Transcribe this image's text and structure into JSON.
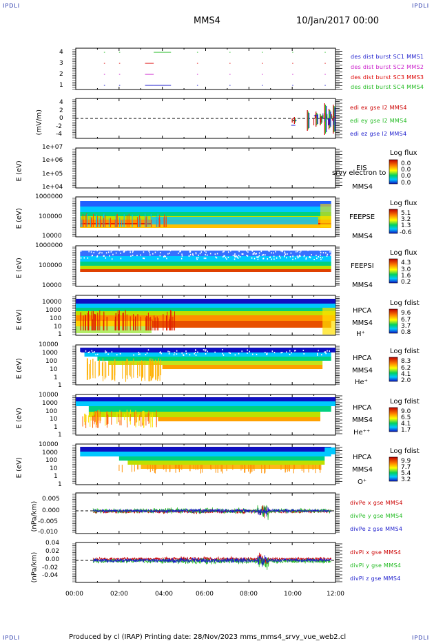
{
  "header": {
    "corners": [
      "IPDLI",
      "IPDLI",
      "IPDLI",
      "IPDLI"
    ],
    "spacecraft": "MMS4",
    "date": "10/Jan/2017 00:00"
  },
  "footer": {
    "text": "Produced by cl (IRAP)   Printing date: 28/Nov/2023   mms_mms4_srvy_vue_web2.cl"
  },
  "colors": {
    "mms1": "#1a1acc",
    "mms2": "#cc22cc",
    "mms3": "#dd0000",
    "mms4": "#22bb22",
    "ex": "#cc0000",
    "ey": "#22bb22",
    "ez": "#1a1acc"
  },
  "chart_data": [
    {
      "type": "scatter",
      "id": "burst",
      "yticks": [
        "4",
        "3",
        "2",
        "1"
      ],
      "legend": [
        "des dist burst SC1 MMS1",
        "des dist burst SC2 MMS2",
        "des dist burst SC3 MMS3",
        "des dist burst SC4 MMS4"
      ],
      "xlim": [
        "00:00",
        "12:00"
      ],
      "segments_hours": [
        [
          1.3,
          1.35
        ],
        [
          2.0,
          2.05
        ],
        [
          3.2,
          3.6
        ],
        [
          3.6,
          4.4
        ],
        [
          5.6,
          5.63
        ],
        [
          7.1,
          7.13
        ],
        [
          8.6,
          8.63
        ],
        [
          10.0,
          10.03
        ],
        [
          11.5,
          11.53
        ]
      ]
    },
    {
      "type": "line",
      "id": "edi",
      "ylabel": "(mV/m)",
      "yticks": [
        "4",
        "2",
        "0",
        "-2",
        "-4"
      ],
      "ylim": [
        -5,
        5
      ],
      "legend": [
        "edi ex gse l2 MMS4",
        "edi ey gse l2 MMS4",
        "edi ez gse l2 MMS4"
      ]
    },
    {
      "type": "heatmap",
      "id": "eis",
      "ylabel": "E (eV)",
      "yticks": [
        "1e+07",
        "1e+06",
        "1e+05",
        "1e+04"
      ],
      "instrument": [
        "EIS",
        "MMS4"
      ],
      "overlay_text": "srvy electron to",
      "colorbar_title": "Log flux",
      "colorbar_values": [
        "0.0",
        "0.0",
        "0.0",
        "0.0"
      ]
    },
    {
      "type": "heatmap",
      "id": "feepse",
      "ylabel": "E (eV)",
      "yticks": [
        "1000000",
        "100000",
        "10000"
      ],
      "instrument": [
        "FEEPSE",
        "MMS4"
      ],
      "colorbar_title": "Log flux",
      "colorbar_values": [
        "5.1",
        "3.2",
        "1.3",
        "-0.6"
      ]
    },
    {
      "type": "heatmap",
      "id": "feepsi",
      "ylabel": "E (eV)",
      "yticks": [
        "1000000",
        "100000",
        "10000"
      ],
      "instrument": [
        "FEEPSI",
        "MMS4"
      ],
      "colorbar_title": "Log flux",
      "colorbar_values": [
        "4.3",
        "3.0",
        "1.6",
        "0.2"
      ]
    },
    {
      "type": "heatmap",
      "id": "hpca-h",
      "ylabel": "E (eV)",
      "yticks": [
        "10000",
        "1000",
        "100",
        "10",
        "1"
      ],
      "instrument": [
        "HPCA",
        "MMS4",
        "H⁺"
      ],
      "colorbar_title": "Log fdist",
      "colorbar_values": [
        "9.6",
        "6.7",
        "3.7",
        "0.8"
      ]
    },
    {
      "type": "heatmap",
      "id": "hpca-he",
      "ylabel": "E (eV)",
      "yticks": [
        "10000",
        "1000",
        "100",
        "10",
        "1"
      ],
      "instrument": [
        "HPCA",
        "MMS4",
        "He⁺"
      ],
      "colorbar_title": "Log fdist",
      "colorbar_values": [
        "8.3",
        "6.2",
        "4.1",
        "2.0"
      ]
    },
    {
      "type": "heatmap",
      "id": "hpca-he2",
      "ylabel": "E (eV)",
      "yticks": [
        "10000",
        "1000",
        "100",
        "10",
        "1"
      ],
      "instrument": [
        "HPCA",
        "MMS4",
        "He⁺⁺"
      ],
      "colorbar_title": "Log fdist",
      "colorbar_values": [
        "9.0",
        "6.5",
        "4.1",
        "1.7"
      ]
    },
    {
      "type": "heatmap",
      "id": "hpca-o",
      "ylabel": "E (eV)",
      "yticks": [
        "10000",
        "1000",
        "100",
        "10",
        "1"
      ],
      "instrument": [
        "HPCA",
        "MMS4",
        "O⁺"
      ],
      "colorbar_title": "Log fdist",
      "colorbar_values": [
        "9.9",
        "7.7",
        "5.4",
        "3.2"
      ]
    },
    {
      "type": "line",
      "id": "divpe",
      "ylabel": "(nPa/km)",
      "yticks": [
        "0.005",
        "0.000",
        "-0.005",
        "-0.010"
      ],
      "ylim": [
        -0.011,
        0.008
      ],
      "legend": [
        "divPe x gse MMS4",
        "divPe y gse MMS4",
        "divPe z gse MMS4"
      ]
    },
    {
      "type": "line",
      "id": "divpi",
      "ylabel": "(nPa/km)",
      "yticks": [
        "0.04",
        "0.02",
        "0.00",
        "-0.02",
        "-0.04"
      ],
      "ylim": [
        -0.05,
        0.045
      ],
      "legend": [
        "divPi x gse MMS4",
        "divPi y gse MMS4",
        "divPi z gse MMS4"
      ],
      "xticks": [
        "00:00",
        "02:00",
        "04:00",
        "06:00",
        "08:00",
        "10:00",
        "12:00"
      ]
    }
  ]
}
